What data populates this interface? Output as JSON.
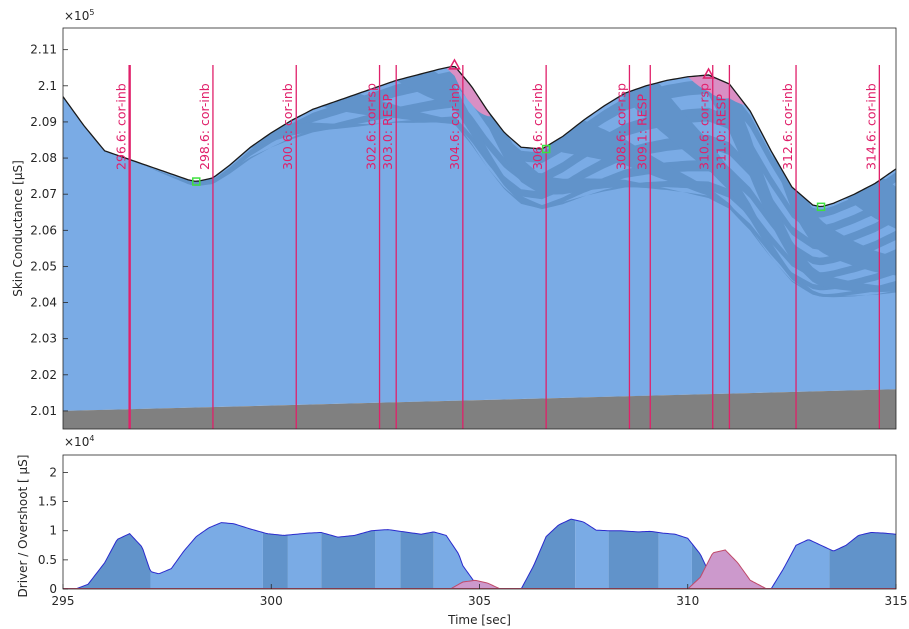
{
  "chart_data": [
    {
      "type": "area",
      "ylabel": "Skin Conductance [μS]",
      "y_exponent_label": "×10",
      "y_exponent_power": "5",
      "xlim": [
        295,
        315
      ],
      "ylim": [
        200500,
        211600
      ],
      "yticks": [
        201000,
        202000,
        203000,
        204000,
        205000,
        206000,
        207000,
        208000,
        209000,
        210000,
        211000
      ],
      "ytick_labels": [
        "2.01",
        "2.02",
        "2.03",
        "2.04",
        "2.05",
        "2.06",
        "2.07",
        "2.08",
        "2.09",
        "2.1",
        "2.11"
      ],
      "signal": {
        "x": [
          295,
          295.5,
          296,
          296.5,
          297,
          297.5,
          298,
          298.2,
          298.6,
          299,
          299.5,
          300,
          300.5,
          301,
          301.5,
          302,
          302.5,
          303,
          303.5,
          304,
          304.4,
          304.8,
          305.2,
          305.6,
          306,
          306.5,
          307,
          307.5,
          308,
          308.5,
          309,
          309.5,
          310,
          310.5,
          311,
          311.5,
          312,
          312.5,
          313,
          313.2,
          313.5,
          314,
          314.5,
          315
        ],
        "y": [
          209700,
          208900,
          208200,
          208000,
          207800,
          207600,
          207400,
          207350,
          207450,
          207800,
          208300,
          208700,
          209050,
          209350,
          209550,
          209750,
          209950,
          210150,
          210300,
          210450,
          210550,
          210000,
          209300,
          208700,
          208300,
          208250,
          208600,
          209050,
          209450,
          209800,
          210000,
          210150,
          210250,
          210300,
          210050,
          209300,
          208200,
          207200,
          206700,
          206650,
          206750,
          207000,
          207300,
          207700
        ]
      },
      "tonic": {
        "x": [
          295,
          315
        ],
        "y": [
          201000,
          201600
        ]
      },
      "components": {
        "onsets": [
          295.0,
          295.8,
          296.7,
          297.6,
          298.5,
          299.4,
          300.3,
          301.2,
          302.1,
          303.0,
          303.9,
          304.8,
          305.7,
          306.6,
          307.5,
          308.4,
          309.3,
          310.2,
          311.1,
          312.0,
          312.9,
          313.8
        ],
        "colors": [
          "#7aabe5",
          "#6193ca"
        ]
      },
      "markers": [
        {
          "x": 298.2,
          "y": 207350,
          "kind": "min",
          "color": "#3ee03e"
        },
        {
          "x": 306.6,
          "y": 208250,
          "kind": "min",
          "color": "#3ee03e"
        },
        {
          "x": 313.2,
          "y": 206650,
          "kind": "min",
          "color": "#3ee03e"
        },
        {
          "x": 304.4,
          "y": 210550,
          "kind": "max",
          "color": "#e0206a"
        },
        {
          "x": 310.5,
          "y": 210300,
          "kind": "max",
          "color": "#e0206a"
        }
      ],
      "events": [
        {
          "x": 296.6,
          "label": "296.6:  cor-inb"
        },
        {
          "x": 298.6,
          "label": "298.6:  cor-inb"
        },
        {
          "x": 300.6,
          "label": "300.6:  cor-inb"
        },
        {
          "x": 302.6,
          "label": "302.6:  cor-rsp"
        },
        {
          "x": 303.0,
          "label": "303.0:  RESP"
        },
        {
          "x": 304.6,
          "label": "304.6:  cor-inb"
        },
        {
          "x": 306.6,
          "label": "306.6:  cor-inb"
        },
        {
          "x": 308.6,
          "label": "308.6:  cor-rsp"
        },
        {
          "x": 309.1,
          "label": "309.1:  RESP"
        },
        {
          "x": 310.6,
          "label": "310.6:  cor-rsp"
        },
        {
          "x": 311.0,
          "label": "311.0:  RESP"
        },
        {
          "x": 312.6,
          "label": "312.6:  cor-inb"
        },
        {
          "x": 314.6,
          "label": "314.6:  cor-inb"
        }
      ],
      "colors": {
        "tonic": "#808080",
        "phasic_light": "#7aabe5",
        "phasic_dark": "#6193ca",
        "overshoot": "#d98fc4",
        "signal_line": "#1a1a1a",
        "event_line": "#e0206a"
      }
    },
    {
      "type": "area",
      "xlabel": "Time [sec]",
      "ylabel": "Driver / Overshoot [ μS]",
      "y_exponent_label": "×10",
      "y_exponent_power": "4",
      "xlim": [
        295,
        315
      ],
      "ylim": [
        0,
        23000
      ],
      "xticks": [
        295,
        300,
        305,
        310,
        315
      ],
      "xtick_labels": [
        "295",
        "300",
        "305",
        "310",
        "315"
      ],
      "yticks": [
        0,
        5000,
        10000,
        15000,
        20000
      ],
      "ytick_labels": [
        "0",
        "0.5",
        "1",
        "1.5",
        "2"
      ],
      "driver": {
        "x": [
          295,
          295.3,
          295.6,
          296,
          296.3,
          296.6,
          296.9,
          297.1,
          297.3,
          297.6,
          297.9,
          298.2,
          298.5,
          298.8,
          299.1,
          299.5,
          299.9,
          300.3,
          300.6,
          300.9,
          301.2,
          301.6,
          302,
          302.4,
          302.8,
          303.2,
          303.6,
          303.9,
          304.2,
          304.5,
          304.6,
          305,
          305.4,
          305.7,
          306,
          306.3,
          306.6,
          306.9,
          307.2,
          307.5,
          307.8,
          308.1,
          308.4,
          308.8,
          309.1,
          309.4,
          309.7,
          310,
          310.3,
          310.5,
          310.8,
          311.1,
          311.4,
          311.7,
          312,
          312.3,
          312.6,
          312.9,
          313.2,
          313.5,
          313.8,
          314.1,
          314.4,
          314.7,
          315
        ],
        "y": [
          0,
          0,
          800,
          4500,
          8500,
          9500,
          7200,
          3000,
          2600,
          3500,
          6500,
          9000,
          10500,
          11400,
          11200,
          10300,
          9500,
          9200,
          9400,
          9600,
          9700,
          8900,
          9200,
          10000,
          10200,
          9800,
          9400,
          9800,
          9200,
          6000,
          4000,
          0,
          0,
          0,
          0,
          4000,
          9000,
          11000,
          12000,
          11500,
          10100,
          10000,
          10000,
          9800,
          9900,
          9600,
          9400,
          8700,
          6000,
          3000,
          0,
          0,
          0,
          0,
          0,
          3500,
          7500,
          8500,
          7500,
          6500,
          7500,
          9200,
          9700,
          9600,
          9400
        ]
      },
      "driver_segments": [
        295.0,
        297.1,
        299.8,
        300.4,
        301.2,
        302.5,
        303.1,
        303.9,
        305.4,
        307.3,
        308.1,
        309.3,
        310.1,
        312.0,
        313.4,
        315.0
      ],
      "overshoot": {
        "x": [
          304.0,
          304.3,
          304.6,
          304.9,
          305.2,
          305.5,
          309.7,
          310.0,
          310.3,
          310.6,
          310.9,
          311.2,
          311.5,
          311.9
        ],
        "y": [
          0,
          0,
          1200,
          1500,
          1000,
          0,
          0,
          0,
          2000,
          6200,
          6700,
          4500,
          1500,
          0
        ],
        "segments": [
          [
            304.0,
            305.5
          ],
          [
            309.7,
            311.9
          ]
        ]
      },
      "colors": {
        "driver_light": "#7aabe5",
        "driver_dark": "#6193ca",
        "driver_line": "#2a2acc",
        "overshoot": "#cc99cc",
        "overshoot_line": "#c04a6a"
      }
    }
  ]
}
